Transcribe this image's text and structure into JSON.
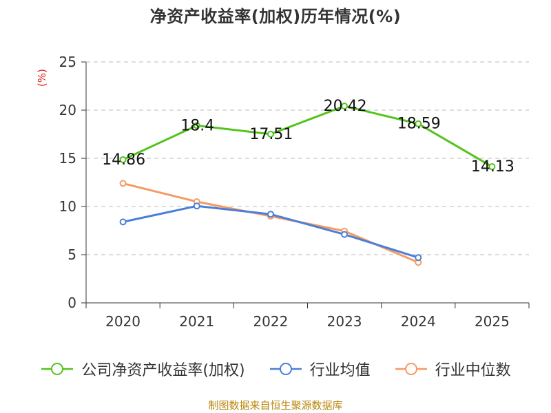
{
  "chart_data": {
    "type": "line",
    "title": "净资产收益率(加权)历年情况(%)",
    "ylabel": "(%)",
    "xlabel": "",
    "categories": [
      "2020",
      "2021",
      "2022",
      "2023",
      "2024",
      "2025"
    ],
    "ylim": [
      0,
      25
    ],
    "yticks": [
      0,
      5,
      10,
      15,
      20,
      25
    ],
    "grid": true,
    "legend_position": "bottom",
    "series": [
      {
        "name": "公司净资产收益率(加权)",
        "color": "#52c41a",
        "values": [
          14.86,
          18.4,
          17.51,
          20.42,
          18.59,
          14.13
        ],
        "labels": [
          "14.86",
          "18.4",
          "17.51",
          "20.42",
          "18.59",
          "14.13"
        ]
      },
      {
        "name": "行业均值",
        "color": "#4a7fd9",
        "values": [
          8.4,
          10.05,
          9.2,
          7.1,
          4.7,
          null
        ]
      },
      {
        "name": "行业中位数",
        "color": "#f59a63",
        "values": [
          12.4,
          10.5,
          9.0,
          7.45,
          4.2,
          null
        ]
      }
    ],
    "source": "制图数据来自恒生聚源数据库"
  }
}
